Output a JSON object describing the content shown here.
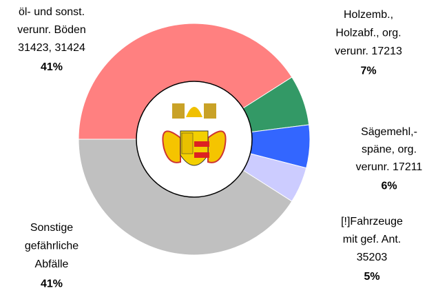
{
  "chart_data": {
    "type": "donut",
    "categories": [
      [
        "öl- und sonst.",
        "verunr. Böden",
        "31423, 31424"
      ],
      [
        "Holzemb.,",
        "Holzabf., org.",
        "verunr. 17213"
      ],
      [
        "Sägemehl,-",
        "späne, org.",
        "verunr. 17211"
      ],
      [
        "[!]Fahrzeuge",
        "mit gef. Ant.",
        "35203"
      ],
      [
        "Sonstige",
        "gefährliche",
        "Abfälle"
      ]
    ],
    "values": [
      41,
      7,
      6,
      5,
      41
    ],
    "value_labels": [
      "41%",
      "7%",
      "6%",
      "5%",
      "41%"
    ],
    "colors": [
      "#ff8080",
      "#339966",
      "#3366ff",
      "#ccccff",
      "#c0c0c0"
    ]
  }
}
